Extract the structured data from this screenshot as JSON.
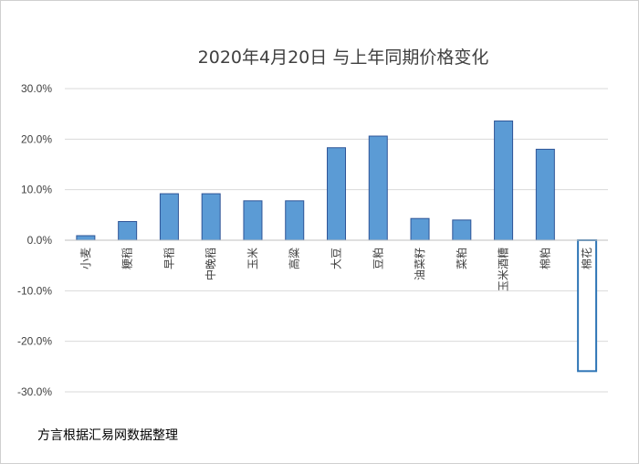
{
  "chart_data": {
    "type": "bar",
    "title": "2020年4月20日 与上年同期价格变化",
    "categories": [
      "小麦",
      "粳稻",
      "早稻",
      "中晚稻",
      "玉米",
      "高粱",
      "大豆",
      "豆粕",
      "油菜籽",
      "菜粕",
      "玉米酒糟",
      "棉粕",
      "棉花"
    ],
    "values": [
      0.9,
      3.7,
      9.2,
      9.2,
      7.8,
      7.8,
      18.3,
      20.6,
      4.3,
      4.0,
      23.6,
      18.0,
      -25.9
    ],
    "y_ticks": [
      "30.0%",
      "20.0%",
      "10.0%",
      "0.0%",
      "-10.0%",
      "-20.0%",
      "-30.0%"
    ],
    "ylim": [
      -30,
      30
    ],
    "grid": true,
    "highlighted_category": "棉花",
    "colors": {
      "bar_fill": "#5b9bd5",
      "bar_stroke": "#2f5597",
      "highlight_stroke": "#2e75b6"
    }
  },
  "footer": {
    "source": "方言根据汇易网数据整理"
  }
}
